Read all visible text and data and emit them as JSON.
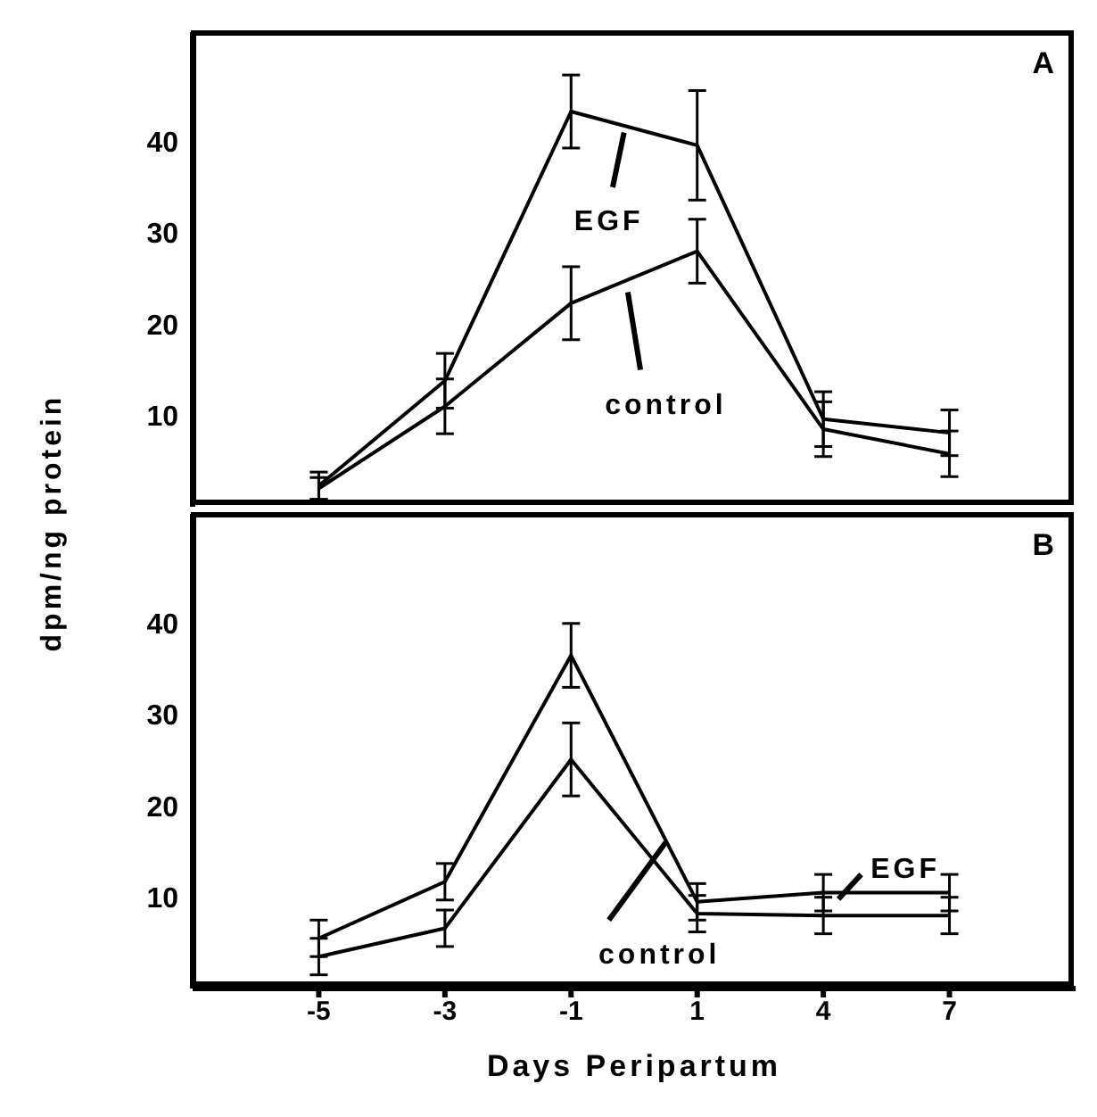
{
  "chart_data": [
    {
      "type": "line",
      "title": "A",
      "ylabel": "dpm/ng protein",
      "categories": [
        "-5",
        "-3",
        "-1",
        "1",
        "4",
        "7"
      ],
      "ylim": [
        0,
        52
      ],
      "yticks": [
        10,
        20,
        30,
        40
      ],
      "tick_labels": "y",
      "marker": "none",
      "line_style": "solid",
      "series": [
        {
          "name": "EGF",
          "color": "#000000",
          "values": [
            2.3,
            13.8,
            43.3,
            39.6,
            9.6,
            8.1
          ],
          "errors": [
            1.5,
            3,
            4,
            6,
            3,
            2.5
          ]
        },
        {
          "name": "control",
          "color": "#000000",
          "values": [
            2,
            11,
            22.3,
            28,
            8.5,
            5.8
          ],
          "errors": [
            1.2,
            3,
            4,
            3.5,
            3,
            2.5
          ]
        }
      ]
    },
    {
      "type": "line",
      "title": "B",
      "xlabel": "Days Peripartum",
      "categories": [
        "-5",
        "-3",
        "-1",
        "1",
        "4",
        "7"
      ],
      "ylim": [
        0,
        52
      ],
      "yticks": [
        10,
        20,
        30,
        40
      ],
      "marker": "none",
      "line_style": "solid",
      "series": [
        {
          "name": "EGF",
          "color": "#000000",
          "values": [
            5.5,
            11.7,
            36.5,
            9.5,
            10.5,
            10.5
          ],
          "errors": [
            2,
            2,
            3.5,
            2,
            2,
            2
          ]
        },
        {
          "name": "control",
          "color": "#000000",
          "values": [
            3.5,
            6.6,
            25.1,
            8.2,
            8,
            8
          ],
          "errors": [
            2,
            2,
            4,
            2,
            2,
            2
          ]
        }
      ]
    }
  ]
}
